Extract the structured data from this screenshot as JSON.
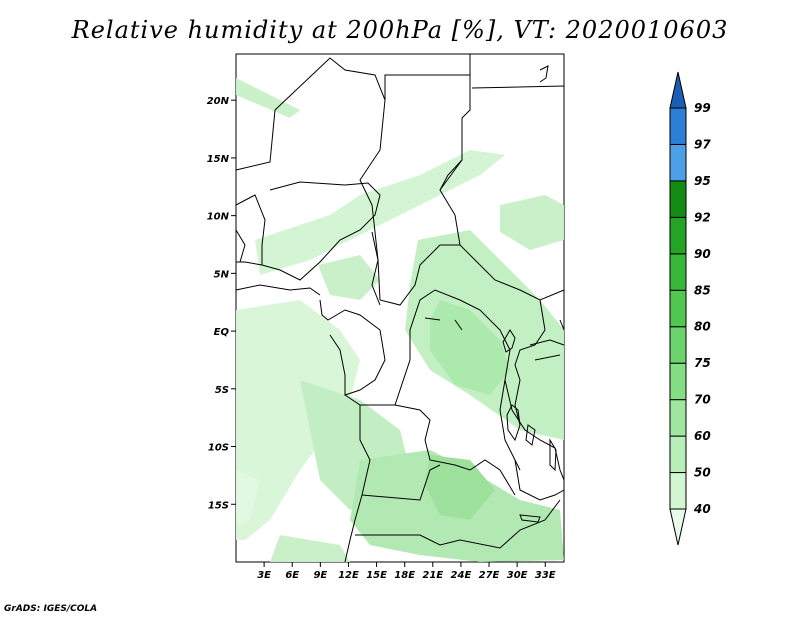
{
  "title": "Relative humidity at 200hPa [%], VT: 2020010603",
  "credit": "GrADS: IGES/COLA",
  "map": {
    "lon_range": [
      0,
      35
    ],
    "lat_range": [
      -20,
      24
    ],
    "lat_ticks": [
      "20N",
      "15N",
      "10N",
      "5N",
      "EQ",
      "5S",
      "10S",
      "15S"
    ],
    "lat_values": [
      20,
      15,
      10,
      5,
      0,
      -5,
      -10,
      -15
    ],
    "lon_ticks": [
      "3E",
      "6E",
      "9E",
      "12E",
      "15E",
      "18E",
      "21E",
      "24E",
      "27E",
      "30E",
      "33E"
    ],
    "lon_values": [
      3,
      6,
      9,
      12,
      15,
      18,
      21,
      24,
      27,
      30,
      33
    ]
  },
  "colorbar": {
    "levels": [
      "40",
      "50",
      "60",
      "70",
      "75",
      "80",
      "85",
      "90",
      "92",
      "95",
      "97",
      "99"
    ],
    "colors": [
      "#e8fbe8",
      "#d2f5d2",
      "#b8eeb8",
      "#a0e6a0",
      "#84de84",
      "#6cd46c",
      "#50c850",
      "#38b838",
      "#24a424",
      "#148c14",
      "#4d9fe8",
      "#2c7fd6",
      "#1a5fb4"
    ]
  }
}
